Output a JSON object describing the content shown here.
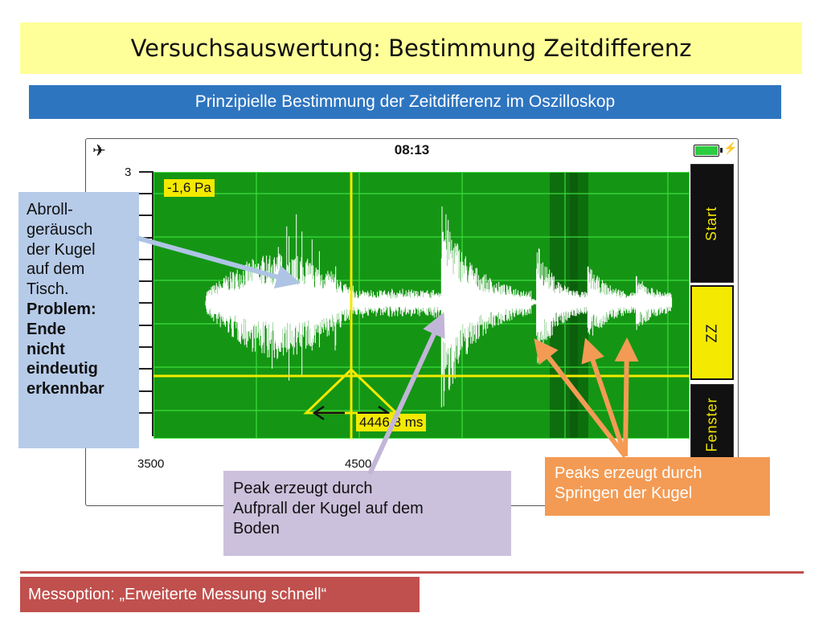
{
  "title": "Versuchsauswertung: Bestimmung Zeitdifferenz",
  "subtitle": "Prinzipielle Bestimmung der Zeitdifferenz im Oszilloskop",
  "phone": {
    "time": "08:13",
    "plane_icon": "airplane-icon",
    "battery_icon": "battery-icon",
    "y_tick_label": "3",
    "x_labels": [
      "3500",
      "4500"
    ],
    "cursor_value": "-1,6 Pa",
    "delta_value": "4446,8 ms",
    "buttons": {
      "start": "Start",
      "zz": "ZZ",
      "fenster": "Fenster"
    },
    "colors": {
      "plot_bg": "#149614",
      "cursor": "#f4e900",
      "waveform": "#ffffff"
    }
  },
  "callouts": {
    "left_normal": [
      "Abroll-",
      "geräusch",
      "der Kugel",
      "auf dem",
      "Tisch."
    ],
    "left_bold": [
      "Problem:",
      "Ende",
      "nicht",
      "eindeutig",
      "erkennbar"
    ],
    "middle": [
      "Peak erzeugt durch",
      "Aufprall der Kugel auf dem",
      "Boden"
    ],
    "right": [
      "Peaks erzeugt durch",
      "Springen der Kugel"
    ]
  },
  "footer": "Messoption: „Erweiterte Messung schnell“"
}
